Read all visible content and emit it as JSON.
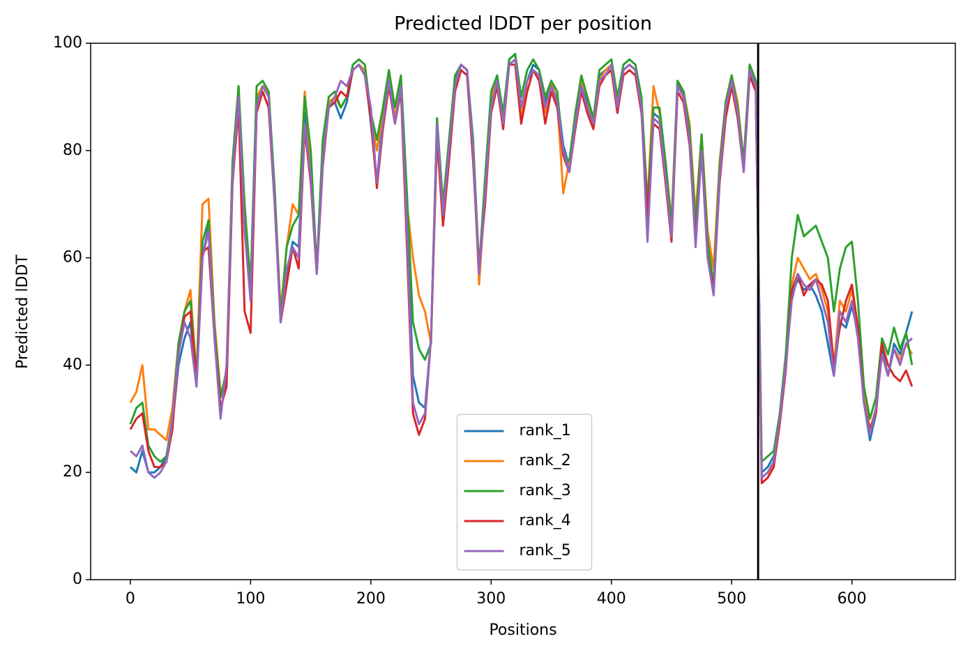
{
  "chart_data": {
    "type": "line",
    "title": "Predicted lDDT per position",
    "xlabel": "Positions",
    "ylabel": "Predicted lDDT",
    "xlim": [
      -33,
      686
    ],
    "ylim": [
      0,
      100
    ],
    "xticks": [
      0,
      100,
      200,
      300,
      400,
      500,
      600
    ],
    "yticks": [
      0,
      20,
      40,
      60,
      80,
      100
    ],
    "legend": "lower center",
    "vline": 522,
    "vline_color": "#000000",
    "x": [
      0,
      5,
      10,
      15,
      20,
      25,
      30,
      35,
      40,
      45,
      50,
      55,
      60,
      65,
      70,
      75,
      80,
      85,
      90,
      95,
      100,
      105,
      110,
      115,
      120,
      125,
      130,
      135,
      140,
      145,
      150,
      155,
      160,
      165,
      170,
      175,
      180,
      185,
      190,
      195,
      200,
      205,
      210,
      215,
      220,
      225,
      230,
      235,
      240,
      245,
      250,
      255,
      260,
      265,
      270,
      275,
      280,
      285,
      290,
      295,
      300,
      305,
      310,
      315,
      320,
      325,
      330,
      335,
      340,
      345,
      350,
      355,
      360,
      365,
      370,
      375,
      380,
      385,
      390,
      395,
      400,
      405,
      410,
      415,
      420,
      425,
      430,
      435,
      440,
      445,
      450,
      455,
      460,
      465,
      470,
      475,
      480,
      485,
      490,
      495,
      500,
      505,
      510,
      515,
      520,
      525,
      530,
      535,
      540,
      545,
      550,
      555,
      560,
      565,
      570,
      575,
      580,
      585,
      590,
      595,
      600,
      605,
      610,
      615,
      620,
      625,
      630,
      635,
      640,
      645,
      650
    ],
    "series": [
      {
        "name": "rank_1",
        "color": "#1f77b4",
        "values": [
          21,
          20,
          24,
          20,
          20,
          21,
          23,
          29,
          40,
          45,
          48,
          36,
          60,
          66,
          46,
          31,
          38,
          75,
          89,
          70,
          52,
          89,
          92,
          91,
          72,
          48,
          57,
          63,
          62,
          87,
          77,
          57,
          79,
          88,
          89,
          86,
          89,
          95,
          96,
          95,
          85,
          74,
          87,
          94,
          86,
          93,
          68,
          38,
          33,
          32,
          45,
          86,
          67,
          81,
          93,
          96,
          95,
          79,
          56,
          73,
          89,
          94,
          86,
          97,
          98,
          88,
          93,
          96,
          95,
          89,
          92,
          90,
          81,
          77,
          86,
          93,
          89,
          85,
          94,
          95,
          96,
          88,
          95,
          96,
          95,
          88,
          65,
          87,
          86,
          76,
          64,
          93,
          90,
          83,
          63,
          81,
          61,
          54,
          76,
          88,
          94,
          88,
          77,
          96,
          93,
          20,
          21,
          23,
          30,
          40,
          53,
          56,
          54,
          55,
          53,
          50,
          44,
          38,
          48,
          47,
          51,
          46,
          33,
          26,
          31,
          43,
          38,
          44,
          42,
          46,
          50
        ]
      },
      {
        "name": "rank_2",
        "color": "#ff7f0e",
        "values": [
          33,
          35,
          40,
          28,
          28,
          27,
          26,
          32,
          44,
          50,
          54,
          38,
          70,
          71,
          48,
          35,
          37,
          78,
          92,
          67,
          55,
          90,
          92,
          91,
          72,
          50,
          62,
          70,
          68,
          91,
          78,
          57,
          80,
          89,
          90,
          88,
          90,
          95,
          96,
          95,
          86,
          80,
          87,
          94,
          86,
          93,
          70,
          60,
          53,
          50,
          44,
          82,
          66,
          80,
          92,
          96,
          95,
          80,
          55,
          72,
          90,
          93,
          84,
          96,
          97,
          86,
          93,
          95,
          94,
          87,
          93,
          89,
          72,
          78,
          86,
          93,
          90,
          85,
          93,
          95,
          96,
          89,
          95,
          96,
          95,
          89,
          70,
          92,
          87,
          78,
          67,
          93,
          91,
          85,
          68,
          83,
          65,
          58,
          78,
          89,
          94,
          89,
          78,
          96,
          93,
          18,
          19,
          22,
          30,
          41,
          55,
          60,
          58,
          56,
          57,
          54,
          50,
          40,
          52,
          50,
          54,
          47,
          34,
          28,
          32,
          42,
          38,
          43,
          41,
          44,
          42
        ]
      },
      {
        "name": "rank_3",
        "color": "#2ca02c",
        "values": [
          29,
          32,
          33,
          25,
          23,
          22,
          23,
          30,
          44,
          50,
          52,
          38,
          63,
          67,
          47,
          34,
          39,
          78,
          92,
          70,
          55,
          92,
          93,
          91,
          73,
          49,
          62,
          66,
          68,
          90,
          80,
          58,
          82,
          90,
          91,
          88,
          90,
          96,
          97,
          96,
          87,
          82,
          88,
          95,
          88,
          94,
          72,
          48,
          43,
          41,
          44,
          86,
          70,
          82,
          94,
          96,
          95,
          82,
          58,
          75,
          91,
          94,
          87,
          97,
          98,
          90,
          95,
          97,
          95,
          90,
          93,
          91,
          79,
          78,
          87,
          94,
          90,
          86,
          95,
          96,
          97,
          90,
          96,
          97,
          96,
          90,
          70,
          88,
          88,
          78,
          66,
          93,
          91,
          84,
          66,
          83,
          63,
          55,
          77,
          89,
          94,
          88,
          78,
          96,
          93,
          22,
          23,
          24,
          31,
          42,
          60,
          68,
          64,
          65,
          66,
          63,
          60,
          50,
          58,
          62,
          63,
          52,
          36,
          30,
          34,
          45,
          42,
          47,
          43,
          46,
          40
        ]
      },
      {
        "name": "rank_4",
        "color": "#d62728",
        "values": [
          28,
          30,
          31,
          24,
          21,
          21,
          22,
          28,
          42,
          49,
          50,
          37,
          61,
          62,
          45,
          32,
          36,
          74,
          88,
          50,
          46,
          87,
          91,
          88,
          70,
          48,
          55,
          62,
          58,
          84,
          74,
          57,
          77,
          88,
          89,
          91,
          90,
          95,
          96,
          94,
          86,
          73,
          84,
          92,
          85,
          91,
          62,
          31,
          27,
          30,
          45,
          83,
          66,
          78,
          91,
          95,
          94,
          78,
          58,
          70,
          87,
          92,
          84,
          96,
          96,
          85,
          91,
          95,
          93,
          85,
          91,
          88,
          79,
          76,
          84,
          91,
          87,
          84,
          92,
          94,
          95,
          87,
          94,
          95,
          94,
          87,
          68,
          85,
          84,
          74,
          63,
          91,
          89,
          81,
          63,
          80,
          60,
          54,
          74,
          86,
          92,
          86,
          76,
          94,
          91,
          18,
          19,
          21,
          29,
          39,
          54,
          57,
          53,
          55,
          56,
          55,
          52,
          40,
          47,
          52,
          55,
          47,
          33,
          28,
          31,
          44,
          40,
          38,
          37,
          39,
          36
        ]
      },
      {
        "name": "rank_5",
        "color": "#9467bd",
        "values": [
          24,
          23,
          25,
          20,
          19,
          20,
          22,
          30,
          42,
          48,
          45,
          36,
          60,
          65,
          45,
          30,
          40,
          75,
          90,
          65,
          52,
          88,
          92,
          90,
          70,
          48,
          58,
          62,
          60,
          85,
          75,
          57,
          78,
          88,
          90,
          93,
          92,
          95,
          96,
          94,
          88,
          74,
          85,
          93,
          85,
          92,
          65,
          33,
          29,
          31,
          45,
          85,
          68,
          80,
          92,
          96,
          95,
          80,
          57,
          72,
          88,
          93,
          85,
          96,
          97,
          88,
          93,
          95,
          94,
          88,
          92,
          89,
          80,
          76,
          85,
          92,
          88,
          85,
          93,
          94,
          96,
          88,
          95,
          96,
          95,
          88,
          63,
          86,
          85,
          75,
          64,
          92,
          90,
          82,
          62,
          80,
          60,
          53,
          75,
          88,
          93,
          87,
          76,
          95,
          92,
          19,
          20,
          22,
          30,
          40,
          52,
          57,
          55,
          54,
          56,
          52,
          48,
          38,
          50,
          48,
          52,
          45,
          33,
          27,
          32,
          42,
          38,
          43,
          40,
          44,
          45
        ]
      }
    ]
  }
}
